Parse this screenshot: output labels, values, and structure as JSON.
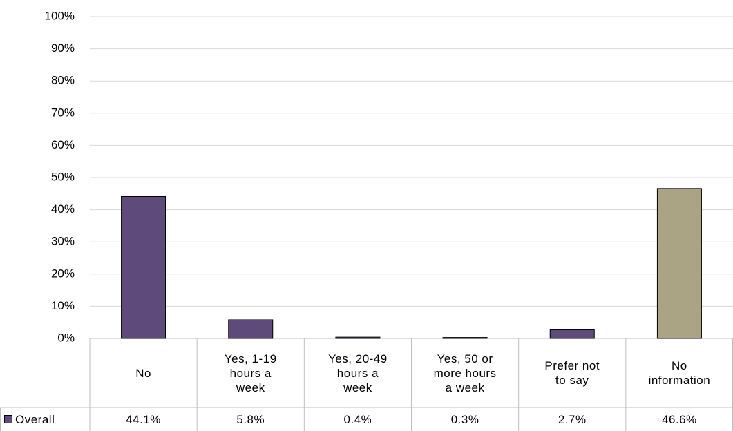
{
  "chart_data": {
    "type": "bar",
    "categories": [
      "No",
      "Yes, 1-19 hours a week",
      "Yes, 20-49 hours a week",
      "Yes, 50 or more hours a week",
      "Prefer not to say",
      "No information"
    ],
    "series": [
      {
        "name": "Overall",
        "color": "#5f4b7b",
        "values": [
          44.1,
          5.8,
          0.4,
          0.3,
          2.7,
          46.6
        ],
        "value_labels": [
          "44.1%",
          "5.8%",
          "0.4%",
          "0.3%",
          "2.7%",
          "46.6%"
        ]
      }
    ],
    "bar_colors": [
      "#5f4b7b",
      "#5f4b7b",
      "#5f4b7b",
      "#5f4b7b",
      "#5f4b7b",
      "#aaa384"
    ],
    "ylim": [
      0,
      100
    ],
    "yticks": [
      {
        "value": 0,
        "label": "0%"
      },
      {
        "value": 10,
        "label": "10%"
      },
      {
        "value": 20,
        "label": "20%"
      },
      {
        "value": 30,
        "label": "30%"
      },
      {
        "value": 40,
        "label": "40%"
      },
      {
        "value": 50,
        "label": "50%"
      },
      {
        "value": 60,
        "label": "60%"
      },
      {
        "value": 70,
        "label": "70%"
      },
      {
        "value": 80,
        "label": "80%"
      },
      {
        "value": 90,
        "label": "90%"
      },
      {
        "value": 100,
        "label": "100%"
      }
    ],
    "grid": true
  }
}
